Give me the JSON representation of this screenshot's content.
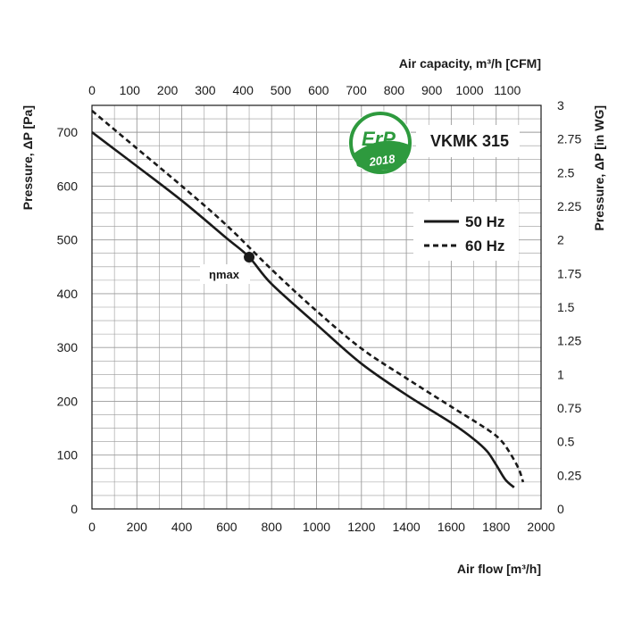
{
  "chart_data": {
    "type": "line",
    "model": "VKMK 315",
    "badge": {
      "text": "ErP",
      "year": "2018",
      "color": "#2e9a3e"
    },
    "top_axis": {
      "title": "Air capacity, m³/h [CFM]",
      "ticks": [
        "0",
        "100",
        "200",
        "300",
        "400",
        "500",
        "600",
        "700",
        "800",
        "900",
        "1000",
        "1100"
      ],
      "range": [
        0,
        1100
      ]
    },
    "x_axis": {
      "title": "Air flow [m³/h]",
      "ticks": [
        "0",
        "200",
        "400",
        "600",
        "800",
        "1000",
        "1200",
        "1400",
        "1600",
        "1800",
        "2000"
      ],
      "range": [
        0,
        2000
      ]
    },
    "y_axis": {
      "title": "Pressure, ΔP [Pa]",
      "ticks": [
        "0",
        "100",
        "200",
        "300",
        "400",
        "500",
        "600",
        "700"
      ],
      "range": [
        0,
        750
      ]
    },
    "y2_axis": {
      "title": "Pressure, ΔP [in WG]",
      "ticks": [
        "0",
        "0.25",
        "0.5",
        "0.75",
        "1",
        "1.25",
        "1.5",
        "1.75",
        "2",
        "2.25",
        "2.5",
        "2.75",
        "3"
      ],
      "range": [
        0,
        3
      ]
    },
    "grid": true,
    "legend_position": "top-right",
    "series": [
      {
        "name": "50 Hz",
        "style": "solid",
        "x": [
          0,
          200,
          400,
          600,
          700,
          800,
          1000,
          1200,
          1400,
          1600,
          1700,
          1760,
          1800,
          1840,
          1880
        ],
        "y": [
          700,
          637,
          573,
          503,
          468,
          418,
          343,
          270,
          212,
          160,
          130,
          107,
          82,
          55,
          40
        ]
      },
      {
        "name": "60 Hz",
        "style": "dashed",
        "x": [
          0,
          200,
          400,
          600,
          800,
          1000,
          1200,
          1400,
          1600,
          1760,
          1820,
          1860,
          1900,
          1920
        ],
        "y": [
          740,
          670,
          600,
          527,
          445,
          368,
          298,
          243,
          190,
          148,
          128,
          105,
          75,
          50
        ]
      }
    ],
    "annotations": [
      {
        "label": "ηmax",
        "x": 700,
        "y": 468
      }
    ]
  }
}
